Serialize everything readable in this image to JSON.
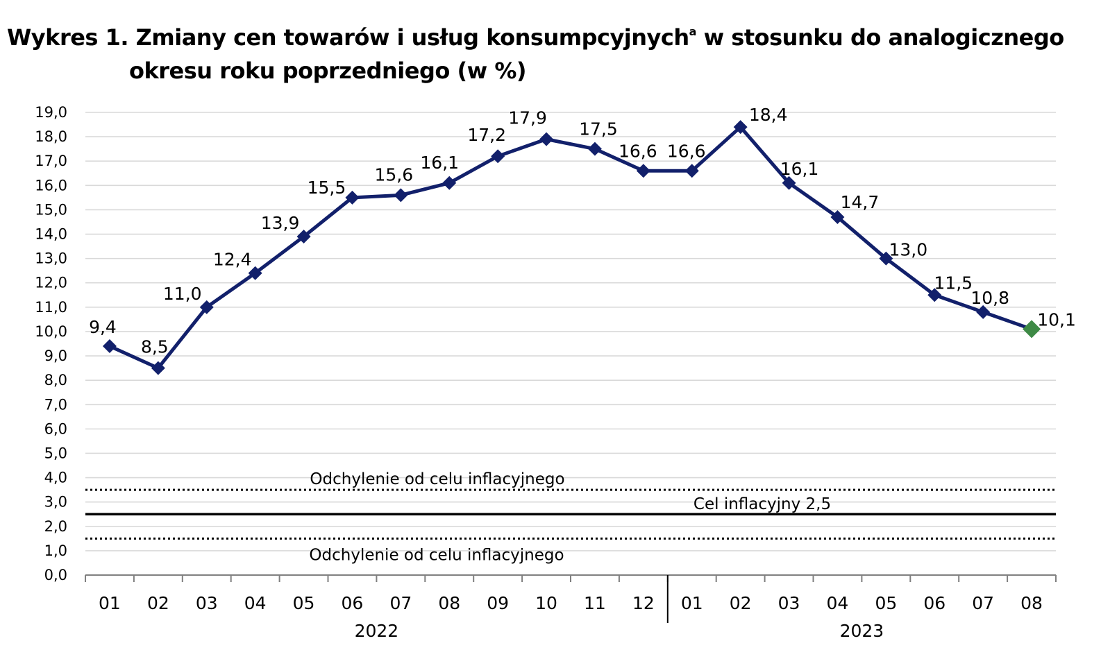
{
  "title": {
    "line1": "Wykres 1. Zmiany cen towarów i usług konsumpcyjnych",
    "superscript": "a",
    "line1_rest": " w stosunku do analogicznego",
    "line2": "okresu roku poprzedniego (w %)"
  },
  "chart_data": {
    "type": "line",
    "categories": [
      "01",
      "02",
      "03",
      "04",
      "05",
      "06",
      "07",
      "08",
      "09",
      "10",
      "11",
      "12",
      "01",
      "02",
      "03",
      "04",
      "05",
      "06",
      "07",
      "08"
    ],
    "year_groups": [
      {
        "label": "2022",
        "start": 0,
        "end": 11
      },
      {
        "label": "2023",
        "start": 12,
        "end": 19
      }
    ],
    "series": [
      {
        "values": [
          9.4,
          8.5,
          11.0,
          12.4,
          13.9,
          15.5,
          15.6,
          16.1,
          17.2,
          17.9,
          17.5,
          16.6,
          16.6,
          18.4,
          16.1,
          14.7,
          13.0,
          11.5,
          10.8,
          10.1
        ],
        "labels": [
          "9,4",
          "8,5",
          "11,0",
          "12,4",
          "13,9",
          "15,5",
          "15,6",
          "16,1",
          "17,2",
          "17,9",
          "17,5",
          "16,6",
          "16,6",
          "18,4",
          "16,1",
          "14,7",
          "13,0",
          "11,5",
          "10,8",
          "10,1"
        ]
      }
    ],
    "ylim": [
      0,
      19
    ],
    "yticks": [
      "0,0",
      "1,0",
      "2,0",
      "3,0",
      "4,0",
      "5,0",
      "6,0",
      "7,0",
      "8,0",
      "9,0",
      "10,0",
      "11,0",
      "12,0",
      "13,0",
      "14,0",
      "15,0",
      "16,0",
      "17,0",
      "18,0",
      "19,0"
    ],
    "reference_lines": [
      {
        "value": 3.5,
        "style": "dotted",
        "label": "Odchylenie od celu inflacyjnego"
      },
      {
        "value": 2.5,
        "style": "solid",
        "label": "Cel inflacyjny 2,5"
      },
      {
        "value": 1.5,
        "style": "dotted",
        "label": "Odchylenie od celu inflacyjnego"
      }
    ],
    "grid": true,
    "colors": {
      "line": "#12206b",
      "marker": "#12206b",
      "last_marker": "#3e8a46",
      "grid": "#d9d9d9"
    }
  }
}
